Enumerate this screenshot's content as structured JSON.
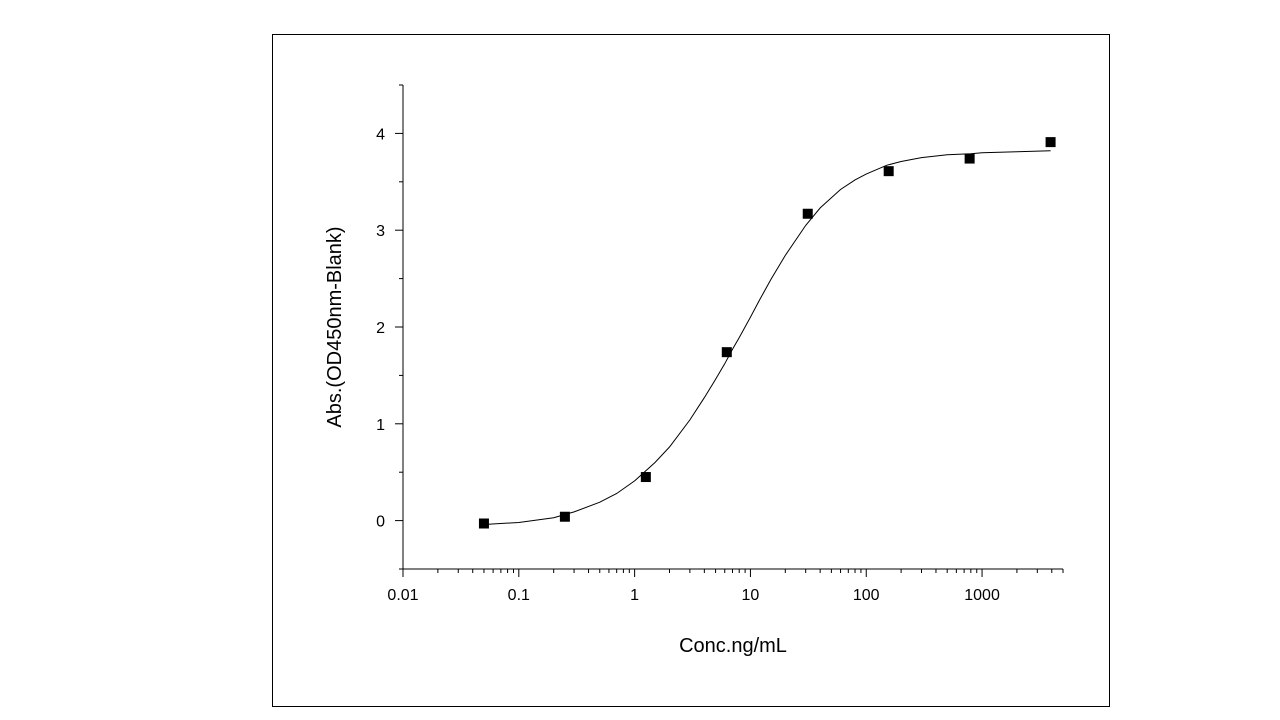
{
  "chart_data": {
    "type": "scatter",
    "title": "",
    "xlabel": "Conc.ng/mL",
    "ylabel": "Abs.(OD450nm-Blank)",
    "xscale": "log",
    "xlim": [
      0.01,
      5000
    ],
    "ylim": [
      -0.5,
      4.5
    ],
    "xticks": [
      0.01,
      0.1,
      1,
      10,
      100,
      1000
    ],
    "xtick_labels": [
      "0.01",
      "0.1",
      "1",
      "10",
      "100",
      "1000"
    ],
    "yticks": [
      0,
      1,
      2,
      3,
      4
    ],
    "ytick_labels": [
      "0",
      "1",
      "2",
      "3",
      "4"
    ],
    "grid": false,
    "legend": "none",
    "series": [
      {
        "kind": "points",
        "marker": "square",
        "color": "#000000",
        "x": [
          0.05,
          0.25,
          1.25,
          6.25,
          31.25,
          156.25,
          781.25,
          3906.25
        ],
        "y": [
          -0.03,
          0.04,
          0.45,
          1.74,
          3.17,
          3.61,
          3.74,
          3.91
        ]
      },
      {
        "kind": "fit-curve",
        "color": "#000000",
        "x": [
          0.05,
          0.1,
          0.2,
          0.3,
          0.5,
          0.7,
          1,
          1.5,
          2,
          3,
          4,
          5,
          6,
          7,
          8,
          10,
          12,
          15,
          20,
          30,
          40,
          60,
          80,
          100,
          150,
          200,
          300,
          500,
          800,
          1000,
          2000,
          3906
        ],
        "y": [
          -0.04,
          -0.02,
          0.03,
          0.09,
          0.19,
          0.28,
          0.41,
          0.6,
          0.76,
          1.04,
          1.27,
          1.46,
          1.62,
          1.77,
          1.89,
          2.1,
          2.28,
          2.49,
          2.74,
          3.05,
          3.23,
          3.42,
          3.52,
          3.58,
          3.67,
          3.71,
          3.75,
          3.78,
          3.79,
          3.8,
          3.81,
          3.82
        ]
      }
    ]
  }
}
